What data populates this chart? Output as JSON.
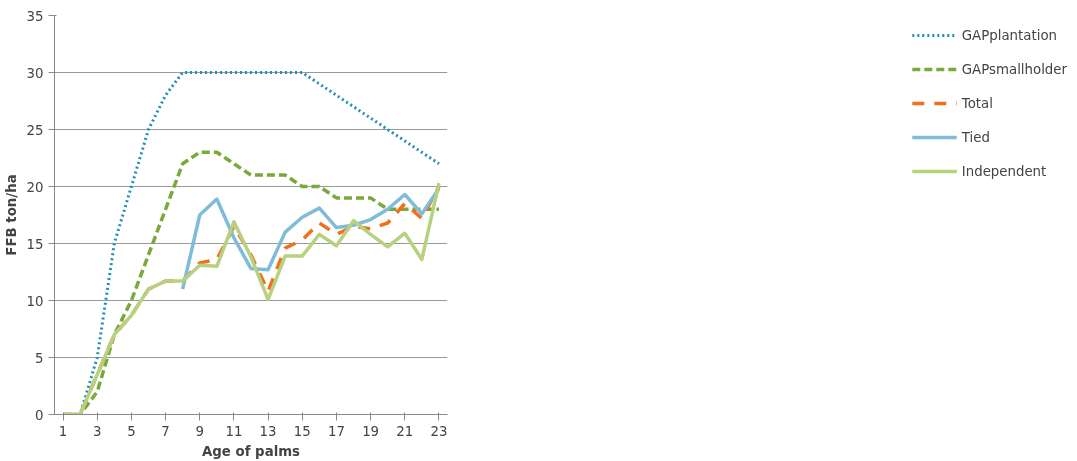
{
  "chart_data": {
    "type": "line",
    "xlabel": "Age of palms",
    "ylabel": "FFB ton/ha",
    "x": [
      1,
      2,
      3,
      4,
      5,
      6,
      7,
      8,
      9,
      10,
      11,
      12,
      13,
      14,
      15,
      16,
      17,
      18,
      19,
      20,
      21,
      22,
      23
    ],
    "series": [
      {
        "name": "GAPplantation",
        "color": "#1f8fb5",
        "line_style": "dotted",
        "values": [
          0,
          0,
          5,
          15,
          20,
          25,
          28,
          30,
          30,
          30,
          30,
          30,
          30,
          30,
          30,
          29,
          28,
          27,
          26,
          25,
          24,
          23,
          22
        ]
      },
      {
        "name": "GAPsmallholder",
        "color": "#78a93a",
        "line_style": "dashed",
        "values": [
          0,
          0,
          2,
          7,
          10,
          14,
          18,
          22,
          23,
          23,
          22,
          21,
          21,
          21,
          20,
          20,
          19,
          19,
          19,
          18,
          18,
          18,
          18
        ]
      },
      {
        "name": "Total",
        "color": "#f26f1c",
        "line_style": "dashed",
        "values": [
          0,
          0,
          3.5,
          7,
          8.7,
          11,
          11.7,
          11.7,
          13.3,
          13.6,
          16.5,
          14,
          10.8,
          14.6,
          15.3,
          16.8,
          15.8,
          16.5,
          16.3,
          16.8,
          18.5,
          17.2,
          20
        ]
      },
      {
        "name": "Tied",
        "color": "#7ebcd7",
        "line_style": "solid",
        "values": [
          null,
          null,
          null,
          null,
          null,
          null,
          null,
          11,
          17.5,
          18.9,
          15.5,
          12.8,
          12.7,
          16,
          17.3,
          18.1,
          16.4,
          16.6,
          17.1,
          18,
          19.3,
          17.6,
          19.8
        ]
      },
      {
        "name": "Independent",
        "color": "#b6d17f",
        "line_style": "solid",
        "values": [
          0,
          0,
          3.5,
          7,
          8.7,
          11,
          11.7,
          11.7,
          13.1,
          13,
          16.9,
          13.8,
          10.1,
          13.9,
          13.9,
          15.8,
          14.8,
          17,
          15.8,
          14.7,
          15.9,
          13.6,
          20.3
        ]
      }
    ],
    "xlim": [
      0.5,
      23.5
    ],
    "xticks": [
      1,
      3,
      5,
      7,
      9,
      11,
      13,
      15,
      17,
      19,
      21,
      23
    ],
    "ylim": [
      0,
      35
    ],
    "yticks": [
      0,
      5,
      10,
      15,
      20,
      25,
      30,
      35
    ],
    "grid": "y",
    "legend": "right",
    "marker": "none"
  }
}
